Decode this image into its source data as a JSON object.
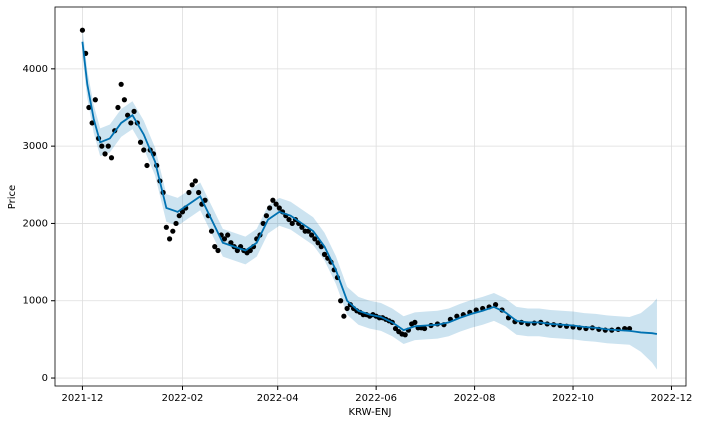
{
  "chart_data": {
    "type": "line",
    "x_label": "KRW-ENJ",
    "y_label": "Price",
    "grid": true,
    "xlim": [
      "2021-11-14",
      "2022-12-10"
    ],
    "xticks": [
      {
        "value": "2021-12-01",
        "label": "2021-12"
      },
      {
        "value": "2022-02-01",
        "label": "2022-02"
      },
      {
        "value": "2022-04-01",
        "label": "2022-04"
      },
      {
        "value": "2022-06-01",
        "label": "2022-06"
      },
      {
        "value": "2022-08-01",
        "label": "2022-08"
      },
      {
        "value": "2022-10-01",
        "label": "2022-10"
      },
      {
        "value": "2022-12-01",
        "label": "2022-12"
      }
    ],
    "ylim": [
      -103,
      4800
    ],
    "yticks": [
      0,
      1000,
      2000,
      3000,
      4000
    ],
    "points": {
      "color": "#000000",
      "x": [
        "2021-12-01",
        "2021-12-03",
        "2021-12-05",
        "2021-12-07",
        "2021-12-09",
        "2021-12-11",
        "2021-12-13",
        "2021-12-15",
        "2021-12-17",
        "2021-12-19",
        "2021-12-21",
        "2021-12-23",
        "2021-12-25",
        "2021-12-27",
        "2021-12-29",
        "2021-12-31",
        "2022-01-02",
        "2022-01-04",
        "2022-01-06",
        "2022-01-08",
        "2022-01-10",
        "2022-01-12",
        "2022-01-14",
        "2022-01-16",
        "2022-01-18",
        "2022-01-20",
        "2022-01-22",
        "2022-01-24",
        "2022-01-26",
        "2022-01-28",
        "2022-01-30",
        "2022-02-01",
        "2022-02-03",
        "2022-02-05",
        "2022-02-07",
        "2022-02-09",
        "2022-02-11",
        "2022-02-13",
        "2022-02-15",
        "2022-02-17",
        "2022-02-19",
        "2022-02-21",
        "2022-02-23",
        "2022-02-25",
        "2022-02-27",
        "2022-03-01",
        "2022-03-03",
        "2022-03-05",
        "2022-03-07",
        "2022-03-09",
        "2022-03-11",
        "2022-03-13",
        "2022-03-15",
        "2022-03-17",
        "2022-03-19",
        "2022-03-21",
        "2022-03-23",
        "2022-03-25",
        "2022-03-27",
        "2022-03-29",
        "2022-03-31",
        "2022-04-02",
        "2022-04-04",
        "2022-04-06",
        "2022-04-08",
        "2022-04-10",
        "2022-04-12",
        "2022-04-14",
        "2022-04-16",
        "2022-04-18",
        "2022-04-20",
        "2022-04-22",
        "2022-04-24",
        "2022-04-26",
        "2022-04-28",
        "2022-04-30",
        "2022-05-02",
        "2022-05-04",
        "2022-05-06",
        "2022-05-08",
        "2022-05-10",
        "2022-05-12",
        "2022-05-14",
        "2022-05-16",
        "2022-05-18",
        "2022-05-20",
        "2022-05-22",
        "2022-05-24",
        "2022-05-26",
        "2022-05-28",
        "2022-05-30",
        "2022-06-01",
        "2022-06-03",
        "2022-06-05",
        "2022-06-07",
        "2022-06-09",
        "2022-06-11",
        "2022-06-13",
        "2022-06-15",
        "2022-06-17",
        "2022-06-19",
        "2022-06-21",
        "2022-06-23",
        "2022-06-25",
        "2022-06-27",
        "2022-06-29",
        "2022-07-01",
        "2022-07-05",
        "2022-07-09",
        "2022-07-13",
        "2022-07-17",
        "2022-07-21",
        "2022-07-25",
        "2022-07-29",
        "2022-08-02",
        "2022-08-06",
        "2022-08-10",
        "2022-08-14",
        "2022-08-18",
        "2022-08-22",
        "2022-08-26",
        "2022-08-30",
        "2022-09-03",
        "2022-09-07",
        "2022-09-11",
        "2022-09-15",
        "2022-09-19",
        "2022-09-23",
        "2022-09-27",
        "2022-10-01",
        "2022-10-05",
        "2022-10-09",
        "2022-10-13",
        "2022-10-17",
        "2022-10-21",
        "2022-10-25",
        "2022-10-29",
        "2022-11-02",
        "2022-11-05"
      ],
      "values": [
        4500,
        4200,
        3500,
        3300,
        3600,
        3100,
        3000,
        2900,
        3000,
        2850,
        3200,
        3500,
        3800,
        3600,
        3400,
        3300,
        3450,
        3300,
        3050,
        2950,
        2750,
        2950,
        2900,
        2750,
        2550,
        2400,
        1950,
        1800,
        1900,
        2000,
        2100,
        2150,
        2200,
        2400,
        2500,
        2550,
        2400,
        2250,
        2300,
        2100,
        1900,
        1700,
        1650,
        1850,
        1800,
        1850,
        1750,
        1700,
        1650,
        1700,
        1650,
        1620,
        1650,
        1700,
        1800,
        1850,
        2000,
        2100,
        2200,
        2300,
        2250,
        2200,
        2150,
        2100,
        2050,
        2000,
        2050,
        2000,
        1950,
        1900,
        1900,
        1850,
        1800,
        1750,
        1700,
        1600,
        1550,
        1500,
        1400,
        1300,
        1000,
        800,
        900,
        950,
        900,
        870,
        850,
        820,
        820,
        800,
        820,
        800,
        780,
        780,
        760,
        740,
        720,
        640,
        600,
        570,
        560,
        620,
        700,
        720,
        650,
        650,
        640,
        680,
        700,
        690,
        760,
        800,
        820,
        850,
        880,
        900,
        920,
        950,
        880,
        780,
        730,
        720,
        700,
        710,
        720,
        700,
        690,
        680,
        670,
        660,
        650,
        640,
        650,
        630,
        620,
        620,
        630,
        640,
        640
      ]
    },
    "forecast": {
      "color": "#0072B2",
      "band_color": "#0072B2",
      "x": [
        "2021-12-01",
        "2021-12-04",
        "2021-12-08",
        "2021-12-12",
        "2021-12-18",
        "2021-12-25",
        "2022-01-01",
        "2022-01-08",
        "2022-01-15",
        "2022-01-22",
        "2022-01-29",
        "2022-02-05",
        "2022-02-12",
        "2022-02-19",
        "2022-02-26",
        "2022-03-05",
        "2022-03-12",
        "2022-03-19",
        "2022-03-26",
        "2022-04-02",
        "2022-04-09",
        "2022-04-16",
        "2022-04-23",
        "2022-04-30",
        "2022-05-07",
        "2022-05-14",
        "2022-05-21",
        "2022-05-28",
        "2022-06-04",
        "2022-06-11",
        "2022-06-18",
        "2022-06-25",
        "2022-07-02",
        "2022-07-09",
        "2022-07-16",
        "2022-07-23",
        "2022-07-30",
        "2022-08-06",
        "2022-08-13",
        "2022-08-20",
        "2022-08-27",
        "2022-09-03",
        "2022-09-10",
        "2022-09-17",
        "2022-09-24",
        "2022-10-01",
        "2022-10-08",
        "2022-10-15",
        "2022-10-22",
        "2022-10-29",
        "2022-11-05",
        "2022-11-12",
        "2022-11-19",
        "2022-11-22"
      ],
      "values": [
        4350,
        3800,
        3350,
        3050,
        3100,
        3300,
        3400,
        3150,
        2800,
        2200,
        2150,
        2250,
        2350,
        2050,
        1750,
        1700,
        1650,
        1750,
        2050,
        2150,
        2100,
        2000,
        1900,
        1700,
        1400,
        1000,
        870,
        820,
        790,
        720,
        620,
        670,
        680,
        690,
        720,
        780,
        830,
        870,
        920,
        850,
        740,
        720,
        720,
        700,
        690,
        680,
        660,
        650,
        630,
        620,
        610,
        590,
        580,
        570
      ],
      "lower": [
        4170,
        3620,
        3170,
        2870,
        2920,
        3120,
        3220,
        2970,
        2620,
        2020,
        1970,
        2070,
        2170,
        1870,
        1570,
        1520,
        1470,
        1570,
        1870,
        1970,
        1920,
        1820,
        1720,
        1520,
        1220,
        820,
        690,
        640,
        610,
        540,
        440,
        490,
        500,
        510,
        540,
        600,
        650,
        690,
        740,
        670,
        560,
        540,
        540,
        520,
        510,
        500,
        480,
        470,
        450,
        440,
        430,
        340,
        200,
        110
      ],
      "upper": [
        4530,
        3980,
        3530,
        3230,
        3280,
        3480,
        3580,
        3330,
        2980,
        2380,
        2330,
        2430,
        2530,
        2230,
        1930,
        1880,
        1830,
        1930,
        2230,
        2330,
        2280,
        2180,
        2080,
        1880,
        1580,
        1180,
        1050,
        1000,
        970,
        900,
        800,
        850,
        860,
        870,
        900,
        960,
        1010,
        1050,
        1100,
        1030,
        920,
        900,
        900,
        880,
        870,
        860,
        840,
        830,
        810,
        800,
        790,
        840,
        960,
        1030
      ]
    }
  }
}
